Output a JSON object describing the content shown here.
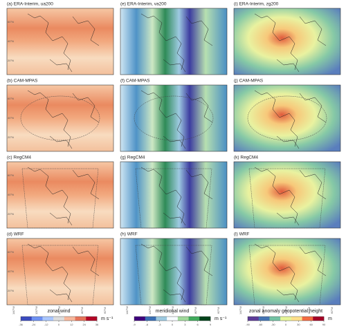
{
  "panels": [
    {
      "title": "(a) ERA-Interim, ua200"
    },
    {
      "title": "(e) ERA-Interim, va200"
    },
    {
      "title": "(i) ERA-Interim, zg200"
    },
    {
      "title": "(b) CAM-MPAS"
    },
    {
      "title": "(f) CAM-MPAS"
    },
    {
      "title": "(j) CAM-MPAS"
    },
    {
      "title": "(c) RegCM4"
    },
    {
      "title": "(g) RegCM4"
    },
    {
      "title": "(k) RegCM4"
    },
    {
      "title": "(d) WRF"
    },
    {
      "title": "(h) WRF"
    },
    {
      "title": "(l) WRF"
    }
  ],
  "map_labels": {
    "lat": [
      "60°N",
      "40°N",
      "20°N"
    ],
    "lon": [
      "140°W",
      "120°W",
      "100°W",
      "80°W",
      "60°W"
    ]
  },
  "colorbars": [
    {
      "label": "zonal wind",
      "unit": "m s⁻¹",
      "ticks": [
        -36,
        -24,
        -12,
        0,
        12,
        24,
        36
      ],
      "colors": [
        "#3b4cc0",
        "#6f92f3",
        "#aac7fd",
        "#dddddd",
        "#f7b89c",
        "#e7745b",
        "#b40426"
      ]
    },
    {
      "label": "meridional wind",
      "unit": "m s⁻¹",
      "ticks": [
        -9,
        -6,
        -3,
        0,
        3,
        6,
        9
      ],
      "colors": [
        "#3f007d",
        "#3a6fb5",
        "#9ecae1",
        "#f7fbff",
        "#a1d99b",
        "#41ab5d",
        "#00441b"
      ]
    },
    {
      "label": "zonal anomaly geopotential height",
      "unit": "m",
      "ticks": [
        -90,
        -60,
        -30,
        0,
        30,
        60,
        90
      ],
      "colors": [
        "#5e3c99",
        "#4575b4",
        "#74c3a4",
        "#e6f598",
        "#fee08b",
        "#f46d43",
        "#a50026"
      ]
    }
  ]
}
